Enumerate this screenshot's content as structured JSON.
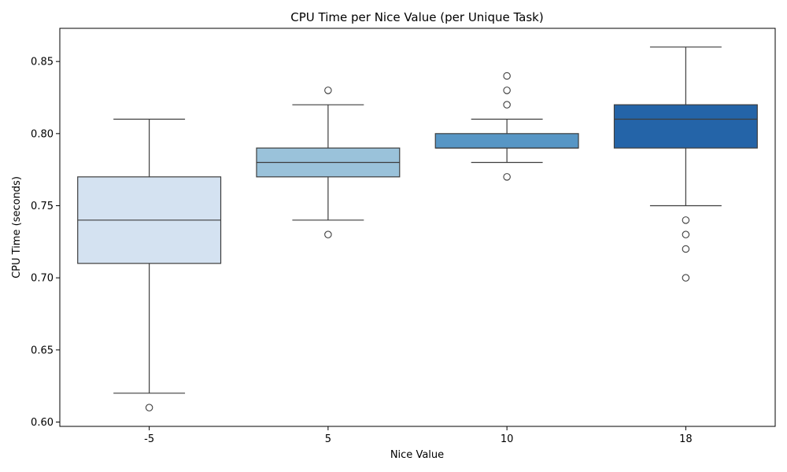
{
  "chart_data": {
    "type": "box",
    "title": "CPU Time per Nice Value (per Unique Task)",
    "xlabel": "Nice Value",
    "ylabel": "CPU Time (seconds)",
    "ylim": [
      0.597,
      0.873
    ],
    "yticks": [
      0.6,
      0.65,
      0.7,
      0.75,
      0.8,
      0.85
    ],
    "ytick_labels": [
      "0.60",
      "0.65",
      "0.70",
      "0.75",
      "0.80",
      "0.85"
    ],
    "grid": false,
    "categories": [
      "-5",
      "5",
      "10",
      "18"
    ],
    "colors": [
      "#d4e2f1",
      "#9ac2da",
      "#5796c5",
      "#2464a8"
    ],
    "edge_color": "#3d3d3d",
    "boxes": [
      {
        "category": "-5",
        "whisker_low": 0.62,
        "q1": 0.71,
        "median": 0.74,
        "q3": 0.77,
        "whisker_high": 0.81,
        "outliers": [
          0.61
        ]
      },
      {
        "category": "5",
        "whisker_low": 0.74,
        "q1": 0.77,
        "median": 0.78,
        "q3": 0.79,
        "whisker_high": 0.82,
        "outliers": [
          0.73,
          0.83
        ]
      },
      {
        "category": "10",
        "whisker_low": 0.78,
        "q1": 0.79,
        "median": 0.79,
        "q3": 0.8,
        "whisker_high": 0.81,
        "outliers": [
          0.77,
          0.82,
          0.83,
          0.84
        ]
      },
      {
        "category": "18",
        "whisker_low": 0.75,
        "q1": 0.79,
        "median": 0.81,
        "q3": 0.82,
        "whisker_high": 0.86,
        "outliers": [
          0.7,
          0.72,
          0.73,
          0.74
        ]
      }
    ]
  }
}
